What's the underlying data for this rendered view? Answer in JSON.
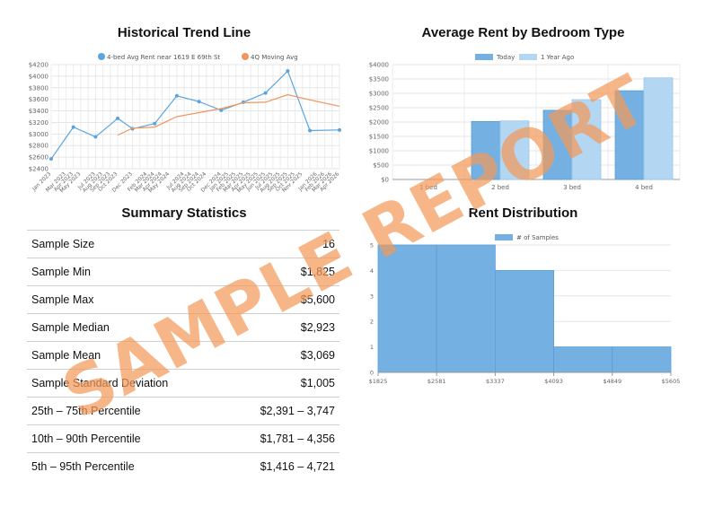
{
  "titles": {
    "trend": "Historical Trend Line",
    "bedroom": "Average Rent by Bedroom Type",
    "summary": "Summary Statistics",
    "distribution": "Rent Distribution"
  },
  "watermark": "SAMPLE REPORT",
  "summary": [
    {
      "label": "Sample Size",
      "value": "16"
    },
    {
      "label": "Sample Min",
      "value": "$1,825"
    },
    {
      "label": "Sample Max",
      "value": "$5,600"
    },
    {
      "label": "Sample Median",
      "value": "$2,923"
    },
    {
      "label": "Sample Mean",
      "value": "$3,069"
    },
    {
      "label": "Sample Standard Deviation",
      "value": "$1,005"
    },
    {
      "label": "25th – 75th Percentile",
      "value": "$2,391 – 3,747"
    },
    {
      "label": "10th – 90th Percentile",
      "value": "$1,781 – 4,356"
    },
    {
      "label": "5th – 95th Percentile",
      "value": "$1,416 – 4,721"
    }
  ],
  "chart_data": [
    {
      "type": "line",
      "title": "Historical Trend Line",
      "x": [
        "Jan 2023",
        "Feb 2023",
        "Mar 2023",
        "Apr 2023",
        "May 2023",
        "Jun 2023",
        "Jul 2023",
        "Aug 2023",
        "Sep 2023",
        "Oct 2023",
        "Nov 2023",
        "Dec 2023",
        "Jan 2024",
        "Feb 2024",
        "Mar 2024",
        "Apr 2024",
        "May 2024",
        "Jun 2024",
        "Jul 2024",
        "Aug 2024",
        "Sep 2024",
        "Oct 2024",
        "Nov 2024",
        "Dec 2024",
        "Jan 2025",
        "Feb 2025",
        "Mar 2025",
        "Apr 2025",
        "May 2025",
        "Jun 2025",
        "Jul 2025",
        "Aug 2025",
        "Sep 2025",
        "Oct 2025",
        "Nov 2025",
        "Dec 2025",
        "Jan 2026",
        "Feb 2026",
        "Mar 2026",
        "Apr 2026"
      ],
      "x_tick_labels": [
        "Jan 2023",
        "Mar 2023",
        "Apr 2023",
        "May 2023",
        "Jul 2023",
        "Aug 2023",
        "Sep 2023",
        "Oct 2023",
        "Dec 2023",
        "Feb 2024",
        "Mar 2024",
        "Apr 2024",
        "May 2024",
        "Jul 2024",
        "Aug 2024",
        "Sep 2024",
        "Oct 2024",
        "Dec 2024",
        "Jan 2025",
        "Feb 2025",
        "Mar 2025",
        "Apr 2025",
        "May 2025",
        "Jun 2025",
        "Jul 2025",
        "Aug 2025",
        "Sep 2025",
        "Oct 2025",
        "Nov 2025",
        "Jan 2026",
        "Feb 2026",
        "Mar 2026",
        "Apr 2026"
      ],
      "series": [
        {
          "name": "4-bed Avg Rent near 1619 E 69th St",
          "color": "#5aa5e0",
          "points": [
            [
              "Jan 2023",
              2570
            ],
            [
              "Apr 2023",
              3120
            ],
            [
              "Jul 2023",
              2950
            ],
            [
              "Oct 2023",
              3270
            ],
            [
              "Dec 2023",
              3090
            ],
            [
              "Mar 2024",
              3180
            ],
            [
              "Jun 2024",
              3660
            ],
            [
              "Sep 2024",
              3560
            ],
            [
              "Dec 2024",
              3410
            ],
            [
              "Mar 2025",
              3550
            ],
            [
              "Jun 2025",
              3710
            ],
            [
              "Sep 2025",
              4090
            ],
            [
              "Dec 2025",
              3060
            ],
            [
              "Apr 2026",
              3070
            ]
          ]
        },
        {
          "name": "4Q Moving Avg",
          "color": "#f0955c",
          "points": [
            [
              "Oct 2023",
              2980
            ],
            [
              "Dec 2023",
              3100
            ],
            [
              "Mar 2024",
              3120
            ],
            [
              "Jun 2024",
              3300
            ],
            [
              "Sep 2024",
              3370
            ],
            [
              "Dec 2024",
              3440
            ],
            [
              "Mar 2025",
              3540
            ],
            [
              "Jun 2025",
              3550
            ],
            [
              "Sep 2025",
              3680
            ],
            [
              "Dec 2025",
              3590
            ],
            [
              "Apr 2026",
              3480
            ]
          ]
        }
      ],
      "ylim": [
        2400,
        4200
      ],
      "y_ticks": [
        "$2400",
        "$2600",
        "$2800",
        "$3000",
        "$3200",
        "$3400",
        "$3600",
        "$3800",
        "$4000",
        "$4200"
      ],
      "grid": true,
      "legend": "top"
    },
    {
      "type": "bar",
      "title": "Average Rent by Bedroom Type",
      "categories": [
        "1 bed",
        "2 bed",
        "3 bed",
        "4 bed"
      ],
      "series": [
        {
          "name": "Today",
          "color": "#74b0e2",
          "values": [
            0,
            2020,
            2410,
            3090
          ]
        },
        {
          "name": "1 Year Ago",
          "color": "#b3d6f2",
          "values": [
            0,
            2040,
            2780,
            3540
          ]
        }
      ],
      "ylim": [
        0,
        4000
      ],
      "y_ticks": [
        "$0",
        "$500",
        "$1000",
        "$1500",
        "$2000",
        "$2500",
        "$3000",
        "$3500",
        "$4000"
      ],
      "grid": true,
      "legend": "top"
    },
    {
      "type": "bar",
      "title": "Rent Distribution",
      "bin_edges": [
        1825,
        2581,
        3337,
        4093,
        4849,
        5605
      ],
      "x_tick_labels": [
        "$1825",
        "$2581",
        "$3337",
        "$4093",
        "$4849",
        "$5605"
      ],
      "series": [
        {
          "name": "# of Samples",
          "color": "#74b0e2",
          "values": [
            5,
            5,
            4,
            1,
            1
          ]
        }
      ],
      "ylim": [
        0,
        5
      ],
      "y_ticks": [
        "0",
        "1",
        "2",
        "3",
        "4",
        "5"
      ],
      "grid": true,
      "legend": "top"
    }
  ]
}
